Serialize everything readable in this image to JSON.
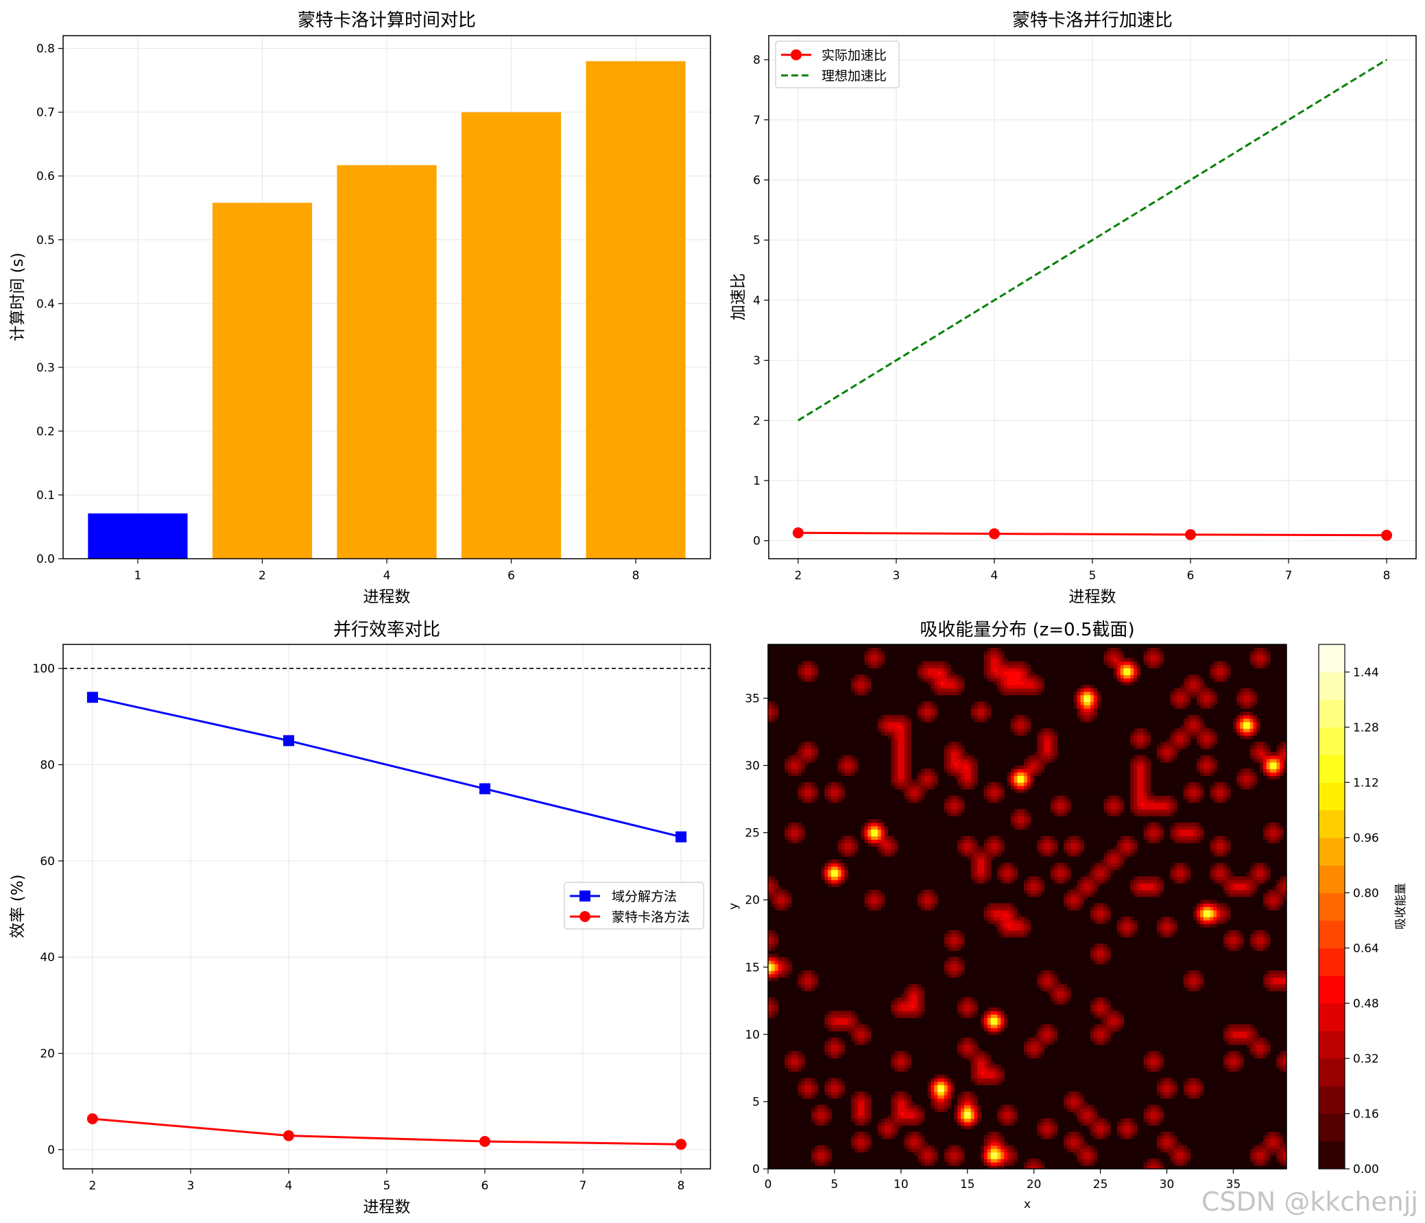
{
  "watermark": "CSDN @kkchenjj",
  "colors": {
    "blue": "#0000ff",
    "orange": "#ffa500",
    "red": "#ff0000",
    "green": "#008000",
    "grid": "#e6e6e6"
  },
  "chart_data": [
    {
      "type": "bar",
      "title": "蒙特卡洛计算时间对比",
      "xlabel": "进程数",
      "ylabel": "计算时间 (s)",
      "categories": [
        "1",
        "2",
        "4",
        "6",
        "8"
      ],
      "values": [
        0.071,
        0.558,
        0.617,
        0.7,
        0.78
      ],
      "bar_colors": [
        "#0000ff",
        "#ffa500",
        "#ffa500",
        "#ffa500",
        "#ffa500"
      ],
      "ylim": [
        0,
        0.82
      ],
      "yticks": [
        0.0,
        0.1,
        0.2,
        0.3,
        0.4,
        0.5,
        0.6,
        0.7,
        0.8
      ],
      "ytick_labels": [
        "0.0",
        "0.1",
        "0.2",
        "0.3",
        "0.4",
        "0.5",
        "0.6",
        "0.7",
        "0.8"
      ],
      "grid": true
    },
    {
      "type": "line",
      "title": "蒙特卡洛并行加速比",
      "xlabel": "进程数",
      "ylabel": "加速比",
      "xlim": [
        1.7,
        8.3
      ],
      "ylim": [
        -0.3,
        8.4
      ],
      "xticks": [
        2,
        3,
        4,
        5,
        6,
        7,
        8
      ],
      "xtick_labels": [
        "2",
        "3",
        "4",
        "5",
        "6",
        "7",
        "8"
      ],
      "yticks": [
        0,
        1,
        2,
        3,
        4,
        5,
        6,
        7,
        8
      ],
      "ytick_labels": [
        "0",
        "1",
        "2",
        "3",
        "4",
        "5",
        "6",
        "7",
        "8"
      ],
      "legend": "top-left",
      "grid": true,
      "series": [
        {
          "name": "实际加速比",
          "x": [
            2,
            4,
            6,
            8
          ],
          "y": [
            0.13,
            0.115,
            0.1,
            0.09
          ],
          "color": "#ff0000",
          "style": "solid",
          "marker": "circle"
        },
        {
          "name": "理想加速比",
          "x": [
            2,
            4,
            6,
            8
          ],
          "y": [
            2,
            4,
            6,
            8
          ],
          "color": "#008000",
          "style": "dashed",
          "marker": "none"
        }
      ]
    },
    {
      "type": "line",
      "title": "并行效率对比",
      "xlabel": "进程数",
      "ylabel": "效率 (%)",
      "xlim": [
        1.7,
        8.3
      ],
      "ylim": [
        -4,
        105
      ],
      "xticks": [
        2,
        3,
        4,
        5,
        6,
        7,
        8
      ],
      "xtick_labels": [
        "2",
        "3",
        "4",
        "5",
        "6",
        "7",
        "8"
      ],
      "yticks": [
        0,
        20,
        40,
        60,
        80,
        100
      ],
      "ytick_labels": [
        "0",
        "20",
        "40",
        "60",
        "80",
        "100"
      ],
      "hline": 100,
      "legend": "center-right",
      "grid": true,
      "series": [
        {
          "name": "域分解方法",
          "x": [
            2,
            4,
            6,
            8
          ],
          "y": [
            94,
            85,
            75,
            65
          ],
          "color": "#0000ff",
          "style": "solid",
          "marker": "square"
        },
        {
          "name": "蒙特卡洛方法",
          "x": [
            2,
            4,
            6,
            8
          ],
          "y": [
            6.4,
            2.9,
            1.7,
            1.1
          ],
          "color": "#ff0000",
          "style": "solid",
          "marker": "circle"
        }
      ]
    },
    {
      "type": "heatmap",
      "title": "吸收能量分布 (z=0.5截面)",
      "xlabel": "x",
      "ylabel": "y",
      "colorbar_label": "吸收能量",
      "grid_size": 40,
      "xlim": [
        0,
        39
      ],
      "ylim": [
        0,
        39
      ],
      "xticks": [
        0,
        5,
        10,
        15,
        20,
        25,
        30,
        35
      ],
      "xtick_labels": [
        "0",
        "5",
        "10",
        "15",
        "20",
        "25",
        "30",
        "35"
      ],
      "yticks": [
        0,
        5,
        10,
        15,
        20,
        25,
        30,
        35
      ],
      "ytick_labels": [
        "0",
        "5",
        "10",
        "15",
        "20",
        "25",
        "30",
        "35"
      ],
      "colorbar_range": [
        0,
        1.52
      ],
      "colorbar_levels": 19,
      "colorbar_ticks": [
        "0.00",
        "0.16",
        "0.32",
        "0.48",
        "0.64",
        "0.80",
        "0.96",
        "1.12",
        "1.28",
        "1.44"
      ],
      "colormap": "hot",
      "hotspots": [
        [
          0,
          34
        ],
        [
          0,
          17
        ],
        [
          0,
          12
        ],
        [
          0,
          21
        ],
        [
          1,
          20
        ],
        [
          1,
          15
        ],
        [
          2,
          8
        ],
        [
          2,
          25
        ],
        [
          3,
          37
        ],
        [
          3,
          28
        ],
        [
          3,
          14
        ],
        [
          3,
          6
        ],
        [
          2,
          30
        ],
        [
          3,
          31
        ],
        [
          4,
          4
        ],
        [
          4,
          1
        ],
        [
          5,
          11
        ],
        [
          5,
          9
        ],
        [
          5,
          22
        ],
        [
          5,
          28
        ],
        [
          5,
          6
        ],
        [
          6,
          11
        ],
        [
          6,
          30
        ],
        [
          6,
          24
        ],
        [
          7,
          10
        ],
        [
          7,
          36
        ],
        [
          7,
          2
        ],
        [
          8,
          38
        ],
        [
          8,
          20
        ],
        [
          8,
          25
        ],
        [
          7,
          5
        ],
        [
          7,
          4
        ],
        [
          9,
          24
        ],
        [
          9,
          33
        ],
        [
          9,
          3
        ],
        [
          10,
          31
        ],
        [
          10,
          32
        ],
        [
          10,
          33
        ],
        [
          10,
          30
        ],
        [
          10,
          29
        ],
        [
          10,
          12
        ],
        [
          10,
          8
        ],
        [
          10,
          4
        ],
        [
          10,
          5
        ],
        [
          11,
          12
        ],
        [
          11,
          4
        ],
        [
          11,
          28
        ],
        [
          11,
          2
        ],
        [
          11,
          13
        ],
        [
          12,
          29
        ],
        [
          12,
          34
        ],
        [
          12,
          37
        ],
        [
          12,
          20
        ],
        [
          12,
          1
        ],
        [
          13,
          6
        ],
        [
          13,
          5
        ],
        [
          13,
          36
        ],
        [
          13,
          37
        ],
        [
          14,
          15
        ],
        [
          14,
          31
        ],
        [
          14,
          30
        ],
        [
          14,
          27
        ],
        [
          14,
          17
        ],
        [
          14,
          1
        ],
        [
          14,
          36
        ],
        [
          15,
          12
        ],
        [
          15,
          9
        ],
        [
          15,
          24
        ],
        [
          15,
          4
        ],
        [
          15,
          5
        ],
        [
          15,
          30
        ],
        [
          15,
          29
        ],
        [
          16,
          34
        ],
        [
          16,
          22
        ],
        [
          16,
          8
        ],
        [
          16,
          7
        ],
        [
          16,
          23
        ],
        [
          17,
          38
        ],
        [
          17,
          7
        ],
        [
          17,
          19
        ],
        [
          17,
          37
        ],
        [
          17,
          11
        ],
        [
          17,
          1
        ],
        [
          17,
          2
        ],
        [
          17,
          28
        ],
        [
          17,
          24
        ],
        [
          18,
          37
        ],
        [
          18,
          36
        ],
        [
          18,
          22
        ],
        [
          18,
          19
        ],
        [
          18,
          18
        ],
        [
          18,
          4
        ],
        [
          18,
          1
        ],
        [
          19,
          37
        ],
        [
          19,
          36
        ],
        [
          19,
          33
        ],
        [
          19,
          29
        ],
        [
          19,
          18
        ],
        [
          19,
          26
        ],
        [
          20,
          36
        ],
        [
          20,
          21
        ],
        [
          20,
          30
        ],
        [
          20,
          9
        ],
        [
          20,
          0
        ],
        [
          21,
          31
        ],
        [
          21,
          32
        ],
        [
          21,
          10
        ],
        [
          21,
          24
        ],
        [
          21,
          14
        ],
        [
          21,
          3
        ],
        [
          22,
          27
        ],
        [
          22,
          22
        ],
        [
          22,
          13
        ],
        [
          23,
          24
        ],
        [
          23,
          5
        ],
        [
          23,
          20
        ],
        [
          23,
          2
        ],
        [
          24,
          35
        ],
        [
          24,
          34
        ],
        [
          24,
          21
        ],
        [
          24,
          4
        ],
        [
          24,
          1
        ],
        [
          25,
          19
        ],
        [
          25,
          16
        ],
        [
          25,
          10
        ],
        [
          25,
          12
        ],
        [
          25,
          3
        ],
        [
          25,
          22
        ],
        [
          26,
          38
        ],
        [
          26,
          27
        ],
        [
          26,
          11
        ],
        [
          26,
          23
        ],
        [
          27,
          37
        ],
        [
          27,
          24
        ],
        [
          27,
          18
        ],
        [
          27,
          3
        ],
        [
          28,
          21
        ],
        [
          28,
          27
        ],
        [
          28,
          28
        ],
        [
          28,
          29
        ],
        [
          28,
          32
        ],
        [
          28,
          30
        ],
        [
          29,
          38
        ],
        [
          29,
          27
        ],
        [
          29,
          25
        ],
        [
          29,
          21
        ],
        [
          29,
          8
        ],
        [
          29,
          4
        ],
        [
          29,
          0
        ],
        [
          30,
          27
        ],
        [
          30,
          31
        ],
        [
          30,
          6
        ],
        [
          30,
          18
        ],
        [
          30,
          2
        ],
        [
          31,
          35
        ],
        [
          31,
          32
        ],
        [
          31,
          25
        ],
        [
          31,
          22
        ],
        [
          31,
          1
        ],
        [
          32,
          28
        ],
        [
          32,
          25
        ],
        [
          32,
          14
        ],
        [
          32,
          36
        ],
        [
          32,
          33
        ],
        [
          32,
          6
        ],
        [
          33,
          35
        ],
        [
          33,
          32
        ],
        [
          33,
          19
        ],
        [
          33,
          30
        ],
        [
          34,
          37
        ],
        [
          34,
          28
        ],
        [
          34,
          24
        ],
        [
          34,
          22
        ],
        [
          34,
          19
        ],
        [
          35,
          21
        ],
        [
          35,
          17
        ],
        [
          35,
          10
        ],
        [
          35,
          8
        ],
        [
          36,
          35
        ],
        [
          36,
          29
        ],
        [
          36,
          21
        ],
        [
          36,
          10
        ],
        [
          37,
          38
        ],
        [
          37,
          31
        ],
        [
          37,
          22
        ],
        [
          37,
          17
        ],
        [
          37,
          9
        ],
        [
          37,
          1
        ],
        [
          38,
          30
        ],
        [
          38,
          25
        ],
        [
          38,
          14
        ],
        [
          38,
          20
        ],
        [
          38,
          2
        ],
        [
          39,
          31
        ],
        [
          39,
          21
        ],
        [
          39,
          14
        ],
        [
          39,
          8
        ],
        [
          39,
          1
        ]
      ],
      "peaks": [
        [
          24,
          35
        ],
        [
          27,
          37
        ],
        [
          8,
          25
        ],
        [
          5,
          22
        ],
        [
          17,
          11
        ],
        [
          19,
          29
        ],
        [
          33,
          19
        ],
        [
          15,
          4
        ],
        [
          13,
          6
        ],
        [
          17,
          1
        ],
        [
          36,
          33
        ],
        [
          0,
          15
        ],
        [
          38,
          30
        ]
      ]
    }
  ]
}
